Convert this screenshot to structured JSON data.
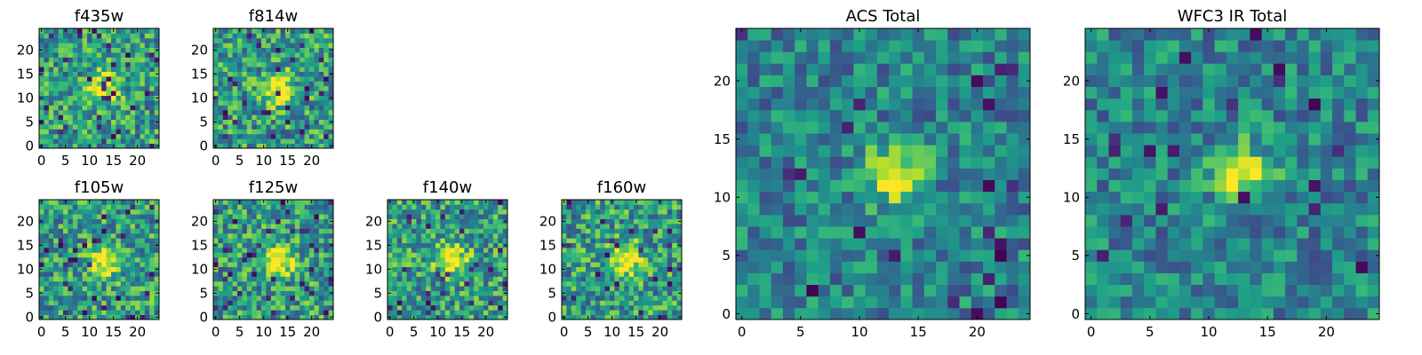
{
  "chart_data": [
    {
      "type": "heatmap",
      "title": "f435w",
      "xticks": [
        "0",
        "5",
        "10",
        "15",
        "20"
      ],
      "yticks": [
        "0",
        "5",
        "10",
        "15",
        "20"
      ],
      "xlim": [
        -0.5,
        24.5
      ],
      "ylim": [
        -0.5,
        24.5
      ],
      "grid": false,
      "colormap": "viridis",
      "source_peak": [
        13,
        12
      ]
    },
    {
      "type": "heatmap",
      "title": "f814w",
      "xticks": [
        "0",
        "5",
        "10",
        "15",
        "20"
      ],
      "yticks": [
        "0",
        "5",
        "10",
        "15",
        "20"
      ],
      "xlim": [
        -0.5,
        24.5
      ],
      "ylim": [
        -0.5,
        24.5
      ],
      "grid": false,
      "colormap": "viridis",
      "source_peak": [
        13,
        12
      ]
    },
    {
      "type": "heatmap",
      "title": "f105w",
      "xticks": [
        "0",
        "5",
        "10",
        "15",
        "20"
      ],
      "yticks": [
        "0",
        "5",
        "10",
        "15",
        "20"
      ],
      "xlim": [
        -0.5,
        24.5
      ],
      "ylim": [
        -0.5,
        24.5
      ],
      "grid": false,
      "colormap": "viridis",
      "source_peak": [
        13,
        12
      ]
    },
    {
      "type": "heatmap",
      "title": "f125w",
      "xticks": [
        "0",
        "5",
        "10",
        "15",
        "20"
      ],
      "yticks": [
        "0",
        "5",
        "10",
        "15",
        "20"
      ],
      "xlim": [
        -0.5,
        24.5
      ],
      "ylim": [
        -0.5,
        24.5
      ],
      "grid": false,
      "colormap": "viridis",
      "source_peak": [
        13,
        12
      ]
    },
    {
      "type": "heatmap",
      "title": "f140w",
      "xticks": [
        "0",
        "5",
        "10",
        "15",
        "20"
      ],
      "yticks": [
        "0",
        "5",
        "10",
        "15",
        "20"
      ],
      "xlim": [
        -0.5,
        24.5
      ],
      "ylim": [
        -0.5,
        24.5
      ],
      "grid": false,
      "colormap": "viridis",
      "source_peak": [
        13,
        12
      ]
    },
    {
      "type": "heatmap",
      "title": "f160w",
      "xticks": [
        "0",
        "5",
        "10",
        "15",
        "20"
      ],
      "yticks": [
        "0",
        "5",
        "10",
        "15",
        "20"
      ],
      "xlim": [
        -0.5,
        24.5
      ],
      "ylim": [
        -0.5,
        24.5
      ],
      "grid": false,
      "colormap": "viridis",
      "source_peak": [
        13,
        12
      ]
    },
    {
      "type": "heatmap",
      "title": "ACS Total",
      "xticks": [
        "0",
        "5",
        "10",
        "15",
        "20"
      ],
      "yticks": [
        "0",
        "5",
        "10",
        "15",
        "20"
      ],
      "xlim": [
        -0.5,
        24.5
      ],
      "ylim": [
        -0.5,
        24.5
      ],
      "grid": false,
      "colormap": "viridis",
      "source_peak": [
        13,
        12
      ]
    },
    {
      "type": "heatmap",
      "title": "WFC3 IR Total",
      "xticks": [
        "0",
        "5",
        "10",
        "15",
        "20"
      ],
      "yticks": [
        "0",
        "5",
        "10",
        "15",
        "20"
      ],
      "xlim": [
        -0.5,
        24.5
      ],
      "ylim": [
        -0.5,
        24.5
      ],
      "grid": false,
      "colormap": "viridis",
      "source_peak": [
        13,
        12
      ]
    }
  ]
}
